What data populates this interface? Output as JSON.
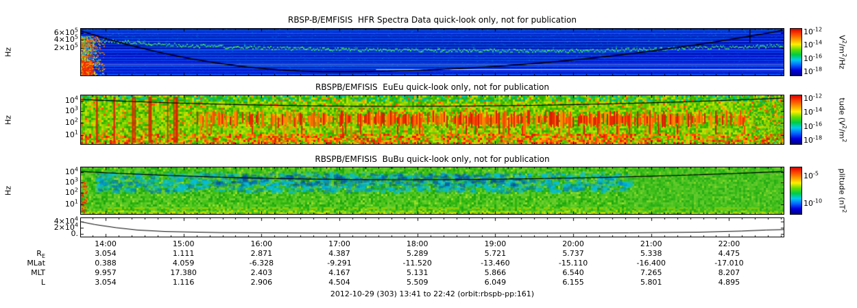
{
  "caption": "2012-10-29 (303) 13:41 to 22:42 (orbit:rbspb-pp:161)",
  "time_ticks": [
    "14:00",
    "15:00",
    "16:00",
    "17:00",
    "18:00",
    "19:00",
    "20:00",
    "21:00",
    "22:00"
  ],
  "time_range": {
    "start": "13:41",
    "end": "22:42"
  },
  "colors": {
    "rainbow": [
      "#d80000",
      "#ff4400",
      "#ff9900",
      "#ffee00",
      "#66dd00",
      "#00cc44",
      "#00ccee",
      "#0066ff",
      "#0000dd",
      "#000088"
    ],
    "spectrogram_blue": "#0013c4",
    "overlay_curve": "#000000"
  },
  "chart_data": [
    {
      "type": "heatmap",
      "title": "RBSP-B/EMFISIS  HFR Spectra Data quick-look only, not for publication",
      "ylabel": "Hz",
      "yticks": [
        "6×10^5",
        "4×10^5",
        "2×10^5"
      ],
      "xrange": [
        "13:41",
        "22:42"
      ],
      "colorbar": {
        "ticks": [
          "10^-12",
          "10^-14",
          "10^-16",
          "10^-18"
        ],
        "label": "V^2/m^2/Hz"
      },
      "description": "Low-intensity blue background with fine horizontal banding; black upper-hybrid-like trace dips from the top left to about 90% depth near 16:30 and returns to the top right; diffuse green emission line drifting below the top; multicolored broadband burst at the left edge near 13:41; short vertical black mark near 22:20."
    },
    {
      "type": "heatmap",
      "title": "RBSPB/EMFISIS  EuEu quick-look only, not for publication",
      "ylabel": "Hz",
      "yticks": [
        "10^4",
        "10^3",
        "10^2",
        "10^1"
      ],
      "xrange": [
        "13:41",
        "22:42"
      ],
      "colorbar": {
        "ticks": [
          "10^-12",
          "10^-14",
          "10^-16",
          "10^-18"
        ],
        "label": "tude (V^2/m^2"
      },
      "description": "Broadband green/yellow electric-field spectra; intense red band between roughly 10^2 and 10^3 Hz from about 15:00 to 22:00 with vertical streaking; orange/red enhancement at the lowest frequencies; thin black curve near the top of the panel."
    },
    {
      "type": "heatmap",
      "title": "RBSPB/EMFISIS  BuBu quick-look only, not for publication",
      "ylabel": "Hz",
      "yticks": [
        "10^4",
        "10^3",
        "10^2",
        "10^1"
      ],
      "xrange": [
        "13:41",
        "22:42"
      ],
      "colorbar": {
        "ticks": [
          "10^-5",
          "10^-10"
        ],
        "label": "plitude (nT^2"
      },
      "description": "Green magnetic-field spectra with cyan/blue mottled patches at mid-to-high frequencies through the middle of the pass; yellow-green enhancement at the lowest frequencies; thin black curve near the top of the panel."
    },
    {
      "type": "line",
      "yticks": [
        "4×10^4",
        "2×10^4",
        "0."
      ],
      "ylim": [
        0,
        47000
      ],
      "series": [
        {
          "name": "line-trace",
          "points": [
            [
              0,
              39000
            ],
            [
              0.02,
              30000
            ],
            [
              0.05,
              20000
            ],
            [
              0.08,
              12500
            ],
            [
              0.12,
              7500
            ],
            [
              0.2,
              4000
            ],
            [
              0.35,
              2300
            ],
            [
              0.5,
              2000
            ],
            [
              0.65,
              2300
            ],
            [
              0.78,
              3200
            ],
            [
              0.88,
              5500
            ],
            [
              0.94,
              9000
            ],
            [
              0.975,
              12500
            ],
            [
              1,
              13800
            ]
          ]
        }
      ]
    },
    {
      "type": "table",
      "rows": [
        {
          "label": "R",
          "sub": "E",
          "values": [
            "3.054",
            "1.111",
            "2.871",
            "4.387",
            "5.289",
            "5.721",
            "5.737",
            "5.338",
            "4.475"
          ]
        },
        {
          "label": "MLat",
          "sub": "",
          "values": [
            "0.388",
            "4.059",
            "-6.328",
            "-9.291",
            "-11.520",
            "-13.460",
            "-15.110",
            "-16.400",
            "-17.010"
          ]
        },
        {
          "label": "MLT",
          "sub": "",
          "values": [
            "9.957",
            "17.380",
            "2.403",
            "4.167",
            "5.131",
            "5.866",
            "6.540",
            "7.265",
            "8.207"
          ]
        },
        {
          "label": "L",
          "sub": "",
          "values": [
            "3.054",
            "1.116",
            "2.906",
            "4.504",
            "5.509",
            "6.049",
            "6.155",
            "5.801",
            "4.895"
          ]
        }
      ]
    }
  ]
}
